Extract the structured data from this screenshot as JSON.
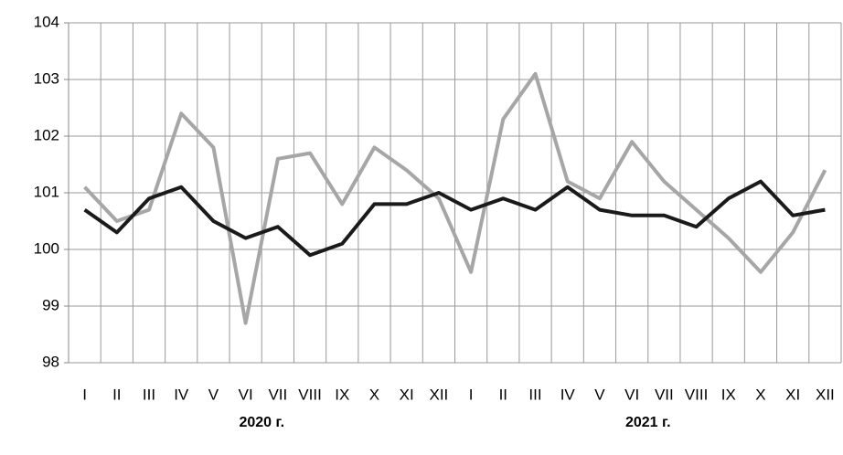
{
  "chart_data": {
    "type": "line",
    "categories": [
      "I",
      "II",
      "III",
      "IV",
      "V",
      "VI",
      "VII",
      "VIII",
      "IX",
      "X",
      "XI",
      "XII",
      "I",
      "II",
      "III",
      "IV",
      "V",
      "VI",
      "VII",
      "VIII",
      "IX",
      "X",
      "XI",
      "XII"
    ],
    "x_groups": [
      "2020 г.",
      "2021 г."
    ],
    "series": [
      {
        "color": "#1a1a1a",
        "values": [
          100.7,
          100.3,
          100.9,
          101.1,
          100.5,
          100.2,
          100.4,
          99.9,
          100.1,
          100.8,
          100.8,
          101.0,
          100.7,
          100.9,
          100.7,
          101.1,
          100.7,
          100.6,
          100.6,
          100.4,
          100.9,
          101.2,
          100.6,
          100.7
        ]
      },
      {
        "color": "#a6a6a6",
        "values": [
          101.1,
          100.5,
          100.7,
          102.4,
          101.8,
          98.7,
          101.6,
          101.7,
          100.8,
          101.8,
          101.4,
          100.9,
          99.6,
          102.3,
          103.1,
          101.2,
          100.9,
          101.9,
          101.2,
          100.7,
          100.2,
          99.6,
          100.3,
          101.4
        ]
      }
    ],
    "ylim": [
      98,
      104
    ],
    "yticks": [
      98,
      99,
      100,
      101,
      102,
      103,
      104
    ],
    "grid": true
  }
}
